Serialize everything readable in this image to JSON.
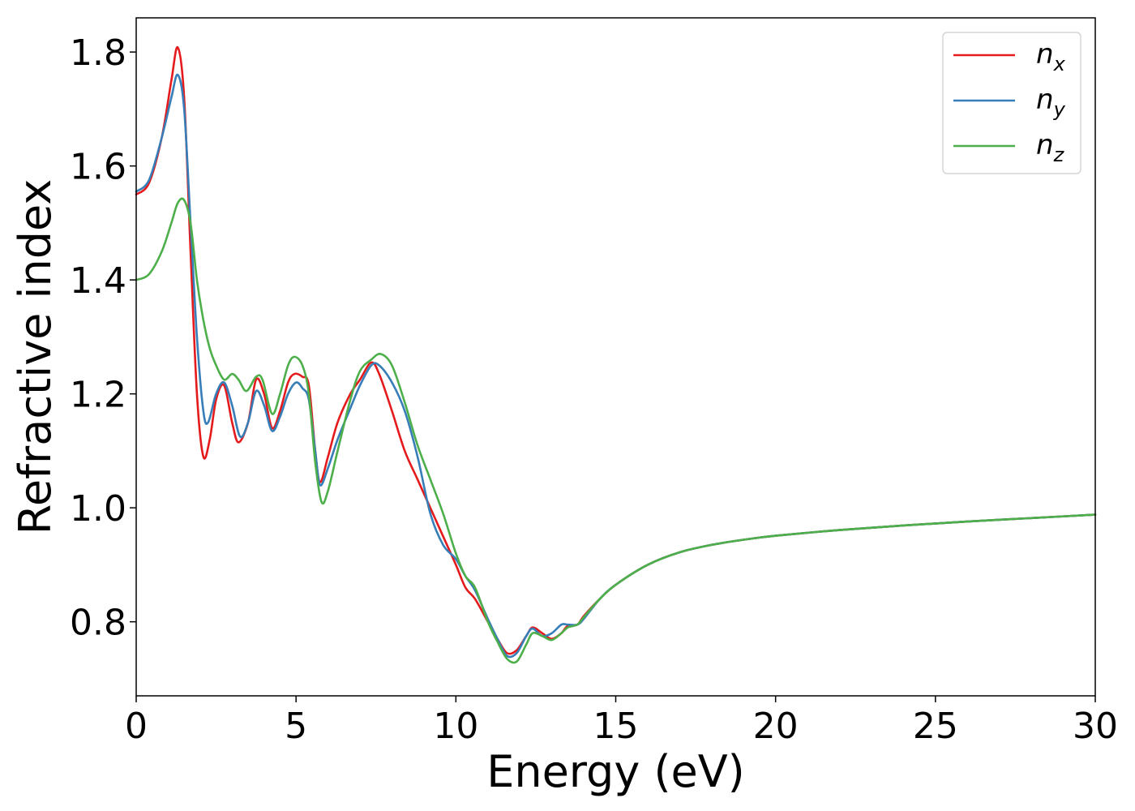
{
  "chart_data": {
    "type": "line",
    "title": "",
    "xlabel": "Energy (eV)",
    "ylabel": "Refractive index",
    "xlim": [
      0,
      30
    ],
    "ylim": [
      0.67,
      1.86
    ],
    "xticks": [
      "0",
      "5",
      "10",
      "15",
      "20",
      "25",
      "30"
    ],
    "yticks": [
      "0.8",
      "1.0",
      "1.2",
      "1.4",
      "1.6",
      "1.8"
    ],
    "grid": false,
    "legend_position": "top-right",
    "series": [
      {
        "name": "n",
        "subscript": "x",
        "color": "#e41a1c",
        "x": [
          0,
          0.4,
          0.8,
          1.1,
          1.3,
          1.5,
          1.7,
          1.9,
          2.1,
          2.3,
          2.5,
          2.75,
          3.0,
          3.2,
          3.5,
          3.75,
          4.0,
          4.25,
          4.5,
          4.75,
          4.95,
          5.2,
          5.4,
          5.6,
          5.75,
          6.0,
          6.3,
          6.7,
          7.0,
          7.35,
          7.6,
          8.0,
          8.4,
          8.8,
          9.2,
          9.6,
          10.0,
          10.3,
          10.6,
          11.0,
          11.3,
          11.6,
          11.9,
          12.2,
          12.4,
          12.7,
          13.0,
          13.3,
          13.5,
          13.8,
          14.0,
          14.5,
          15.0,
          16.0,
          17.0,
          18.0,
          19.0,
          20.0,
          22.0,
          24.0,
          26.0,
          28.0,
          30.0
        ],
        "values": [
          1.55,
          1.57,
          1.65,
          1.75,
          1.808,
          1.72,
          1.45,
          1.2,
          1.09,
          1.12,
          1.19,
          1.215,
          1.15,
          1.115,
          1.15,
          1.225,
          1.2,
          1.14,
          1.17,
          1.22,
          1.235,
          1.23,
          1.215,
          1.1,
          1.045,
          1.09,
          1.15,
          1.2,
          1.225,
          1.255,
          1.235,
          1.17,
          1.1,
          1.05,
          1.0,
          0.95,
          0.9,
          0.86,
          0.84,
          0.8,
          0.77,
          0.745,
          0.75,
          0.775,
          0.79,
          0.78,
          0.77,
          0.78,
          0.793,
          0.795,
          0.81,
          0.84,
          0.865,
          0.9,
          0.922,
          0.935,
          0.944,
          0.951,
          0.961,
          0.969,
          0.976,
          0.982,
          0.988
        ]
      },
      {
        "name": "n",
        "subscript": "y",
        "color": "#377eb8",
        "x": [
          0,
          0.4,
          0.8,
          1.1,
          1.3,
          1.5,
          1.7,
          1.9,
          2.1,
          2.25,
          2.5,
          2.75,
          3.0,
          3.25,
          3.5,
          3.75,
          4.0,
          4.25,
          4.5,
          4.75,
          5.0,
          5.2,
          5.4,
          5.6,
          5.75,
          6.0,
          6.3,
          6.7,
          7.0,
          7.35,
          7.6,
          8.0,
          8.4,
          8.8,
          9.2,
          9.6,
          10.0,
          10.3,
          10.6,
          11.0,
          11.3,
          11.6,
          11.9,
          12.2,
          12.4,
          12.7,
          13.0,
          13.3,
          13.5,
          13.8,
          14.0,
          14.5,
          15.0,
          16.0,
          17.0,
          18.0,
          19.0,
          20.0,
          22.0,
          24.0,
          26.0,
          28.0,
          30.0
        ],
        "values": [
          1.555,
          1.575,
          1.65,
          1.72,
          1.76,
          1.7,
          1.5,
          1.3,
          1.17,
          1.15,
          1.2,
          1.22,
          1.18,
          1.125,
          1.15,
          1.205,
          1.18,
          1.135,
          1.16,
          1.2,
          1.22,
          1.21,
          1.19,
          1.1,
          1.04,
          1.07,
          1.12,
          1.175,
          1.215,
          1.25,
          1.25,
          1.22,
          1.17,
          1.09,
          0.99,
          0.935,
          0.91,
          0.88,
          0.855,
          0.805,
          0.77,
          0.74,
          0.745,
          0.775,
          0.788,
          0.775,
          0.78,
          0.795,
          0.795,
          0.795,
          0.805,
          0.84,
          0.865,
          0.9,
          0.922,
          0.935,
          0.944,
          0.951,
          0.961,
          0.969,
          0.976,
          0.982,
          0.988
        ]
      },
      {
        "name": "n",
        "subscript": "z",
        "color": "#4daf4a",
        "x": [
          0,
          0.4,
          0.8,
          1.1,
          1.3,
          1.5,
          1.7,
          1.9,
          2.1,
          2.3,
          2.5,
          2.75,
          3.0,
          3.2,
          3.45,
          3.75,
          3.95,
          4.25,
          4.5,
          4.75,
          4.95,
          5.2,
          5.4,
          5.6,
          5.8,
          6.0,
          6.3,
          6.7,
          7.0,
          7.35,
          7.65,
          8.0,
          8.4,
          8.8,
          9.2,
          9.6,
          10.0,
          10.3,
          10.6,
          11.0,
          11.3,
          11.6,
          11.9,
          12.2,
          12.4,
          12.7,
          13.0,
          13.3,
          13.5,
          13.8,
          14.0,
          14.5,
          15.0,
          16.0,
          17.0,
          18.0,
          19.0,
          20.0,
          22.0,
          24.0,
          26.0,
          28.0,
          30.0
        ],
        "values": [
          1.4,
          1.41,
          1.45,
          1.5,
          1.535,
          1.54,
          1.5,
          1.4,
          1.33,
          1.28,
          1.25,
          1.225,
          1.235,
          1.225,
          1.205,
          1.23,
          1.225,
          1.165,
          1.2,
          1.25,
          1.265,
          1.25,
          1.2,
          1.08,
          1.01,
          1.03,
          1.1,
          1.19,
          1.24,
          1.26,
          1.27,
          1.25,
          1.185,
          1.11,
          1.05,
          0.99,
          0.92,
          0.88,
          0.86,
          0.8,
          0.765,
          0.735,
          0.73,
          0.76,
          0.78,
          0.775,
          0.768,
          0.78,
          0.79,
          0.795,
          0.808,
          0.84,
          0.865,
          0.9,
          0.922,
          0.935,
          0.944,
          0.951,
          0.961,
          0.969,
          0.976,
          0.982,
          0.988
        ]
      }
    ]
  }
}
